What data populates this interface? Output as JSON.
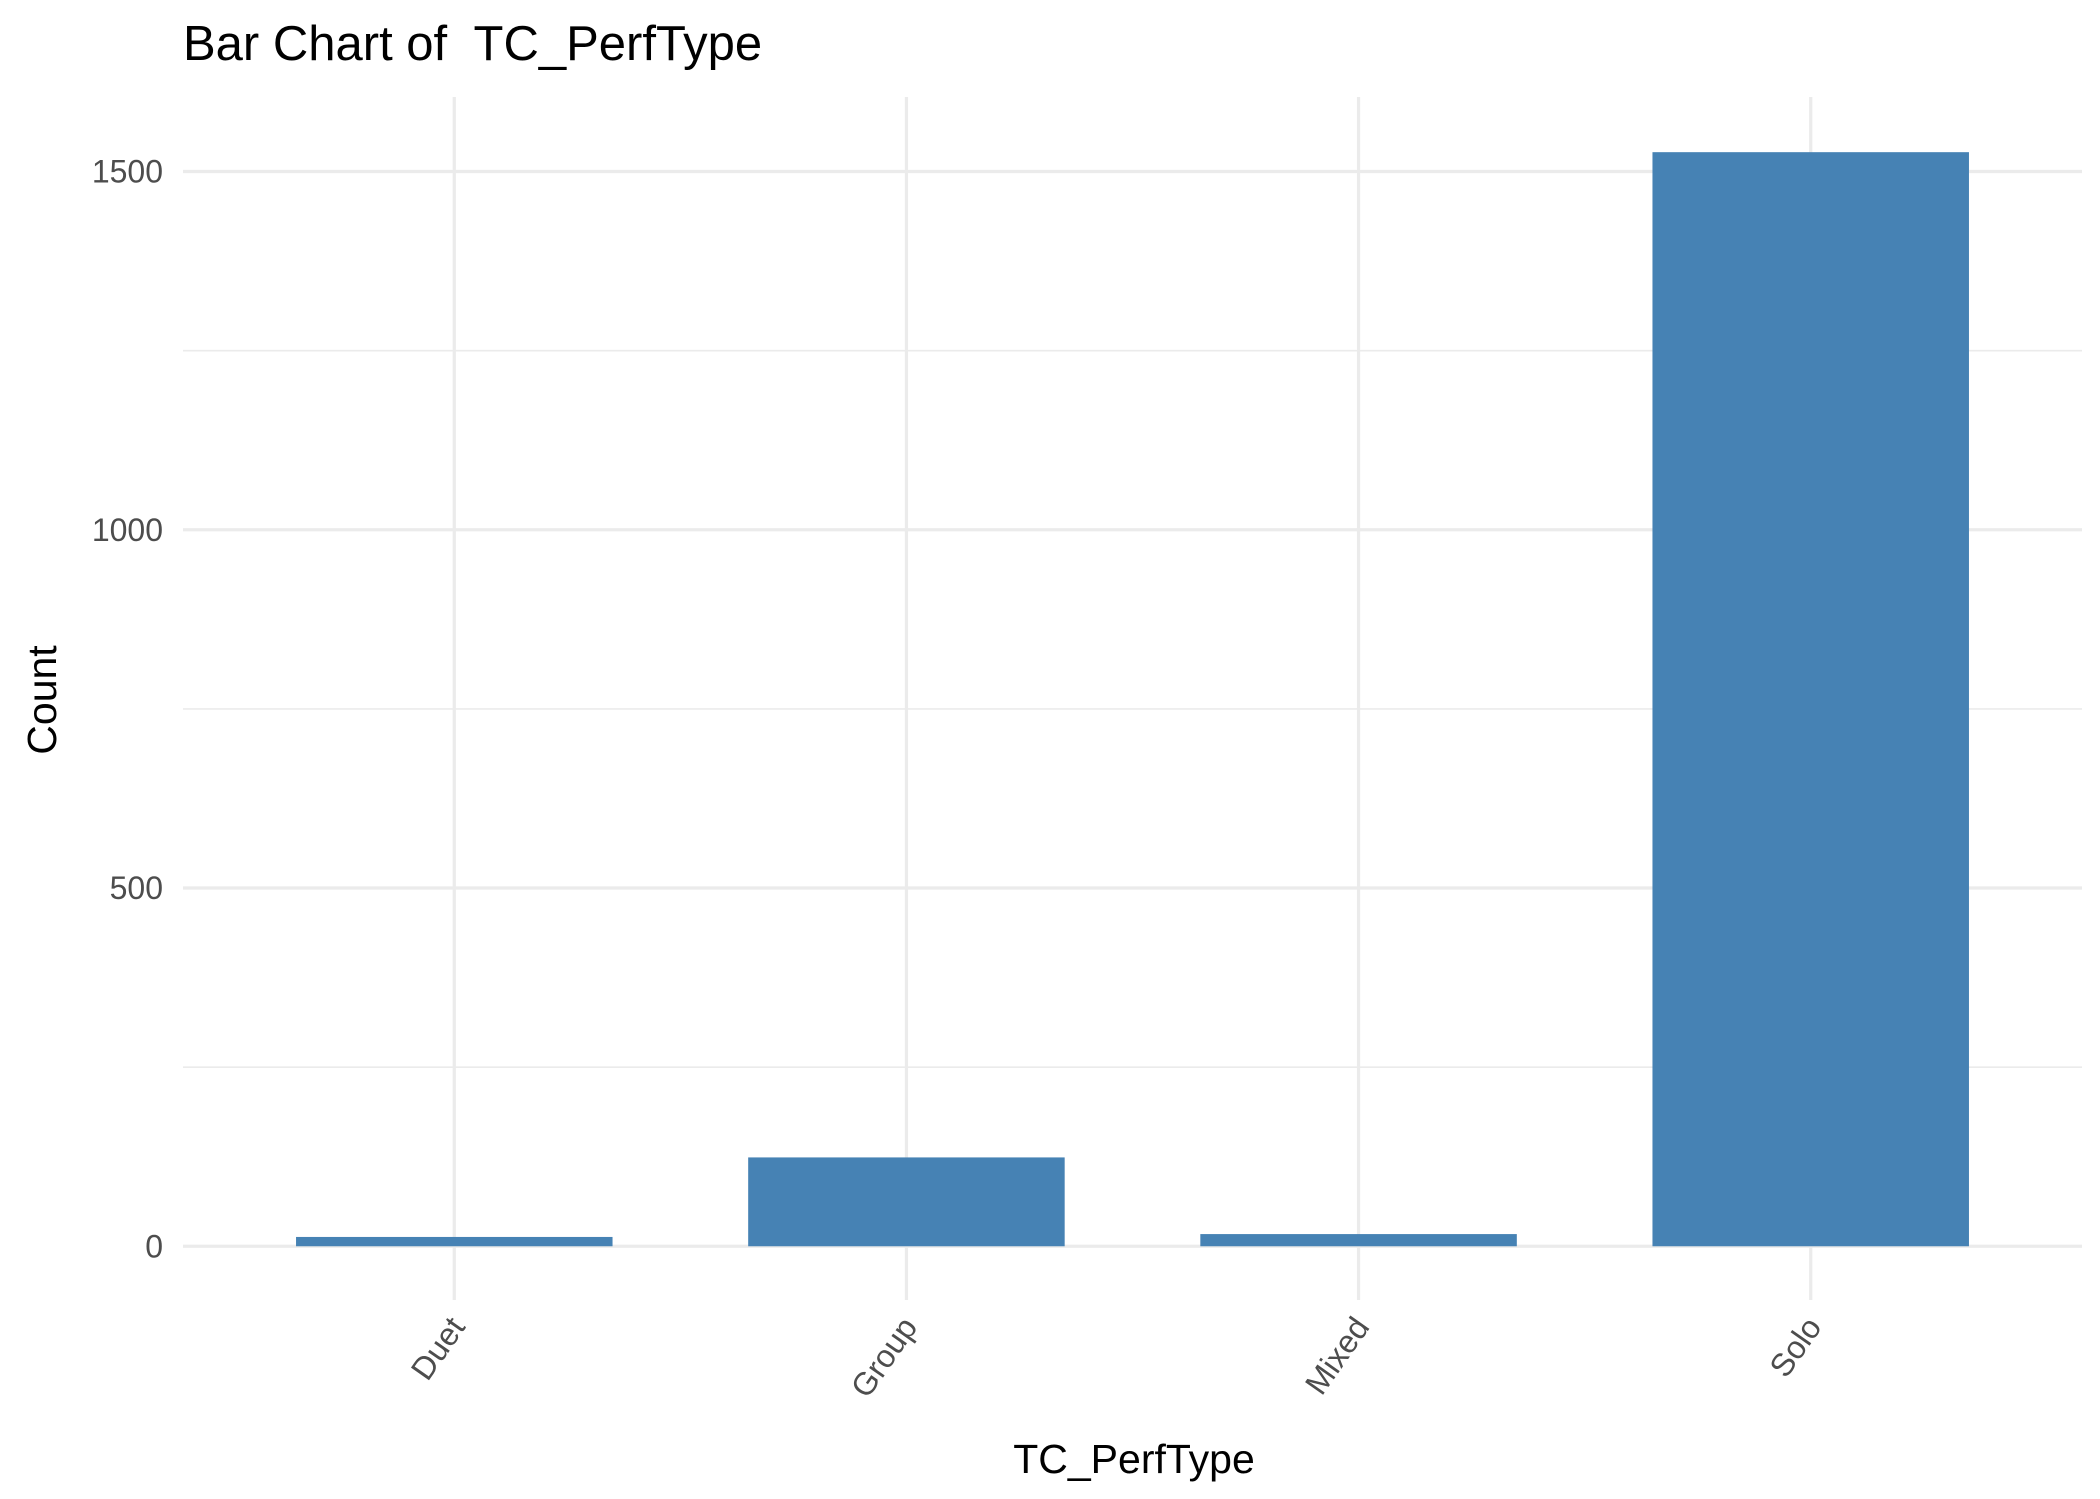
{
  "chart_data": {
    "type": "bar",
    "title": "Bar Chart of  TC_PerfType",
    "xlabel": "TC_PerfType",
    "ylabel": "Count",
    "categories": [
      "Duet",
      "Group",
      "Mixed",
      "Solo"
    ],
    "values": [
      13,
      124,
      17,
      1527
    ],
    "ylim": [
      -75,
      1604
    ],
    "y_ticks": [
      0,
      500,
      1000,
      1500
    ],
    "y_tick_labels": [
      "0",
      "500",
      "1000",
      "1500"
    ],
    "y_minor_ticks": [
      250,
      750,
      1250
    ],
    "x_tick_rotation_deg": -55,
    "grid": true,
    "legend": "none",
    "colors": {
      "bar": "#4682b4",
      "grid": "#ebebeb"
    }
  }
}
